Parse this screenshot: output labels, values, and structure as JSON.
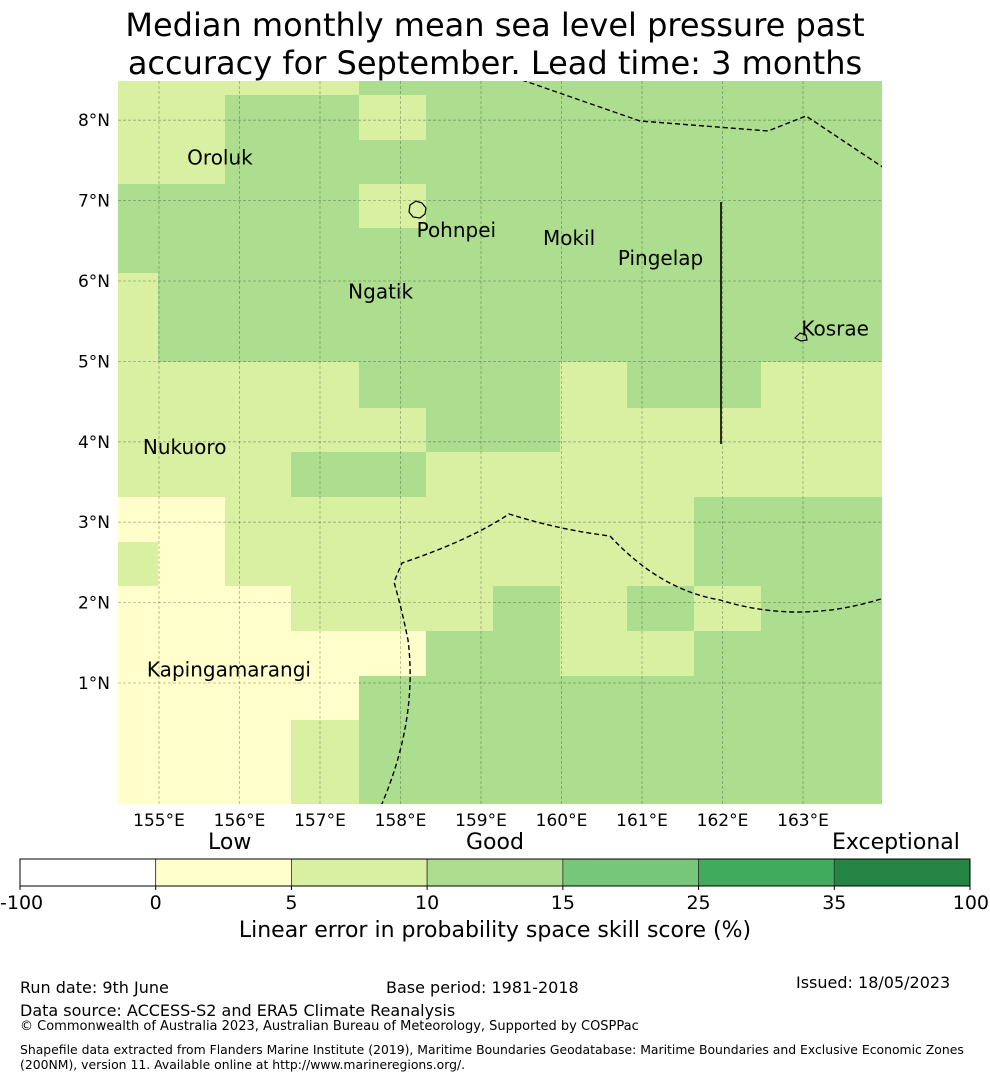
{
  "title_line1": "Median monthly mean sea level pressure past",
  "title_line2": "accuracy for September. Lead time: 3 months",
  "map": {
    "lon_ticks": [
      "155°E",
      "156°E",
      "157°E",
      "158°E",
      "159°E",
      "160°E",
      "161°E",
      "162°E",
      "163°E"
    ],
    "lat_ticks": [
      "8°N",
      "7°N",
      "6°N",
      "5°N",
      "4°N",
      "3°N",
      "2°N",
      "1°N"
    ],
    "places": [
      {
        "name": "Oroluk",
        "lon": 155.35,
        "lat": 7.45
      },
      {
        "name": "Pohnpei",
        "lon": 158.2,
        "lat": 6.55
      },
      {
        "name": "Mokil",
        "lon": 159.77,
        "lat": 6.45
      },
      {
        "name": "Pingelap",
        "lon": 160.7,
        "lat": 6.2
      },
      {
        "name": "Ngatik",
        "lon": 157.35,
        "lat": 5.78
      },
      {
        "name": "Kosrae",
        "lon": 162.98,
        "lat": 5.32
      },
      {
        "name": "Nukuoro",
        "lon": 154.8,
        "lat": 3.85
      },
      {
        "name": "Kapingamarangi",
        "lon": 154.85,
        "lat": 1.08
      }
    ]
  },
  "legend": {
    "categories": [
      "Low",
      "Good",
      "Exceptional"
    ],
    "tick_labels": [
      "-100",
      "0",
      "5",
      "10",
      "15",
      "25",
      "35",
      "100"
    ],
    "colors": [
      "#ffffff",
      "#ffffcc",
      "#d9f0a3",
      "#addd8e",
      "#78c679",
      "#41ab5d",
      "#238443"
    ],
    "label": "Linear error in probability space skill score (%)"
  },
  "footer": {
    "run_date": "Run date: 9th June",
    "base_period": "Base period: 1981-2018",
    "issued": "Issued: 18/05/2023",
    "data_source": "Data source: ACCESS-S2 and ERA5 Climate Reanalysis",
    "copyright": "© Commonwealth of Australia 2023, Australian Bureau of Meteorology, Supported by COSPPac",
    "shapefile_line1": "Shapefile data extracted from Flanders Marine Institute (2019), Maritime Boundaries Geodatabase: Maritime Boundaries and Exclusive Economic Zones",
    "shapefile_line2": "(200NM), version 11. Available online at http://www.marineregions.org/."
  }
}
